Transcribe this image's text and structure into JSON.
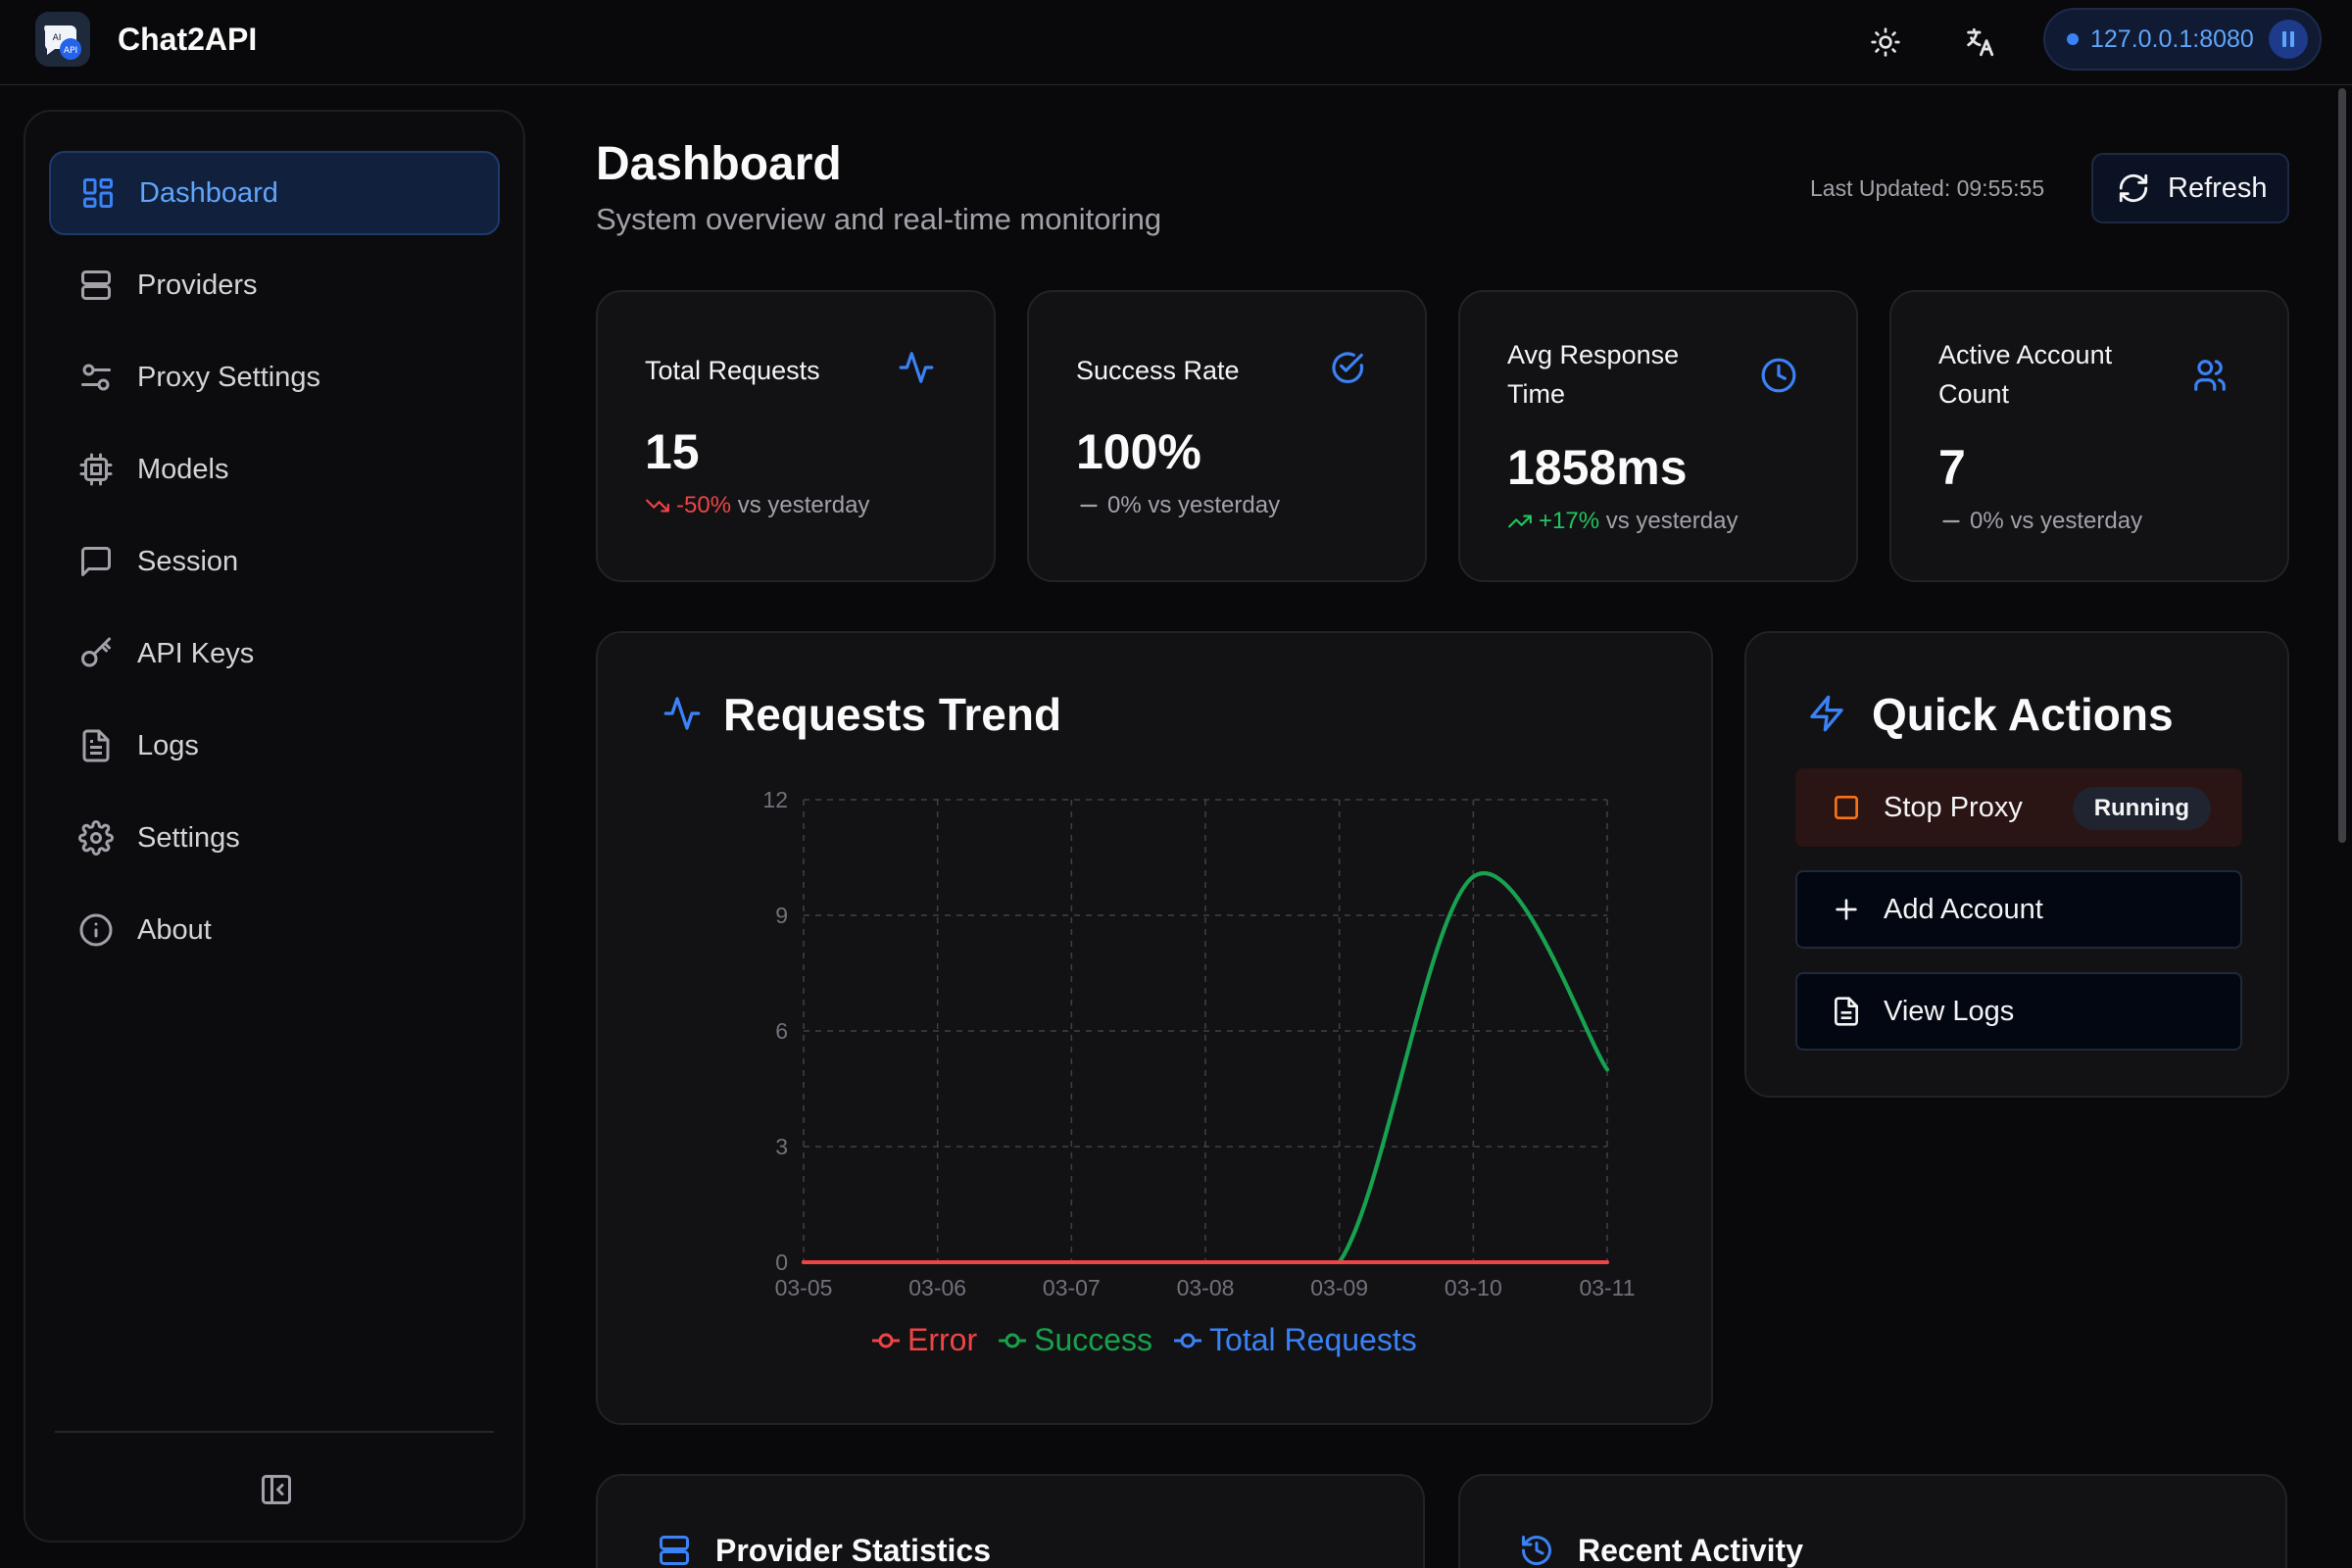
{
  "app": {
    "name": "Chat2API"
  },
  "topbar": {
    "server_address": "127.0.0.1:8080"
  },
  "sidebar": {
    "items": [
      {
        "label": "Dashboard",
        "icon": "dashboard-icon",
        "active": true
      },
      {
        "label": "Providers",
        "icon": "server-icon"
      },
      {
        "label": "Proxy Settings",
        "icon": "sliders-icon"
      },
      {
        "label": "Models",
        "icon": "cpu-icon"
      },
      {
        "label": "Session",
        "icon": "chat-bubble-icon"
      },
      {
        "label": "API Keys",
        "icon": "key-icon"
      },
      {
        "label": "Logs",
        "icon": "file-text-icon"
      },
      {
        "label": "Settings",
        "icon": "gear-icon"
      },
      {
        "label": "About",
        "icon": "info-icon"
      }
    ]
  },
  "header": {
    "title": "Dashboard",
    "subtitle": "System overview and real-time monitoring",
    "last_updated": "Last Updated: 09:55:55",
    "refresh_label": "Refresh"
  },
  "stats": [
    {
      "label": "Total Requests",
      "value": "15",
      "trend": "-50%",
      "trend_suffix": "vs yesterday",
      "direction": "down",
      "icon": "activity-icon"
    },
    {
      "label": "Success Rate",
      "value": "100%",
      "trend": "0%",
      "trend_suffix": "vs yesterday",
      "direction": "flat",
      "icon": "check-circle-icon"
    },
    {
      "label": "Avg Response Time",
      "value": "1858ms",
      "trend": "+17%",
      "trend_suffix": "vs yesterday",
      "direction": "up",
      "icon": "clock-icon"
    },
    {
      "label": "Active Account Count",
      "value": "7",
      "trend": "0%",
      "trend_suffix": "vs yesterday",
      "direction": "flat",
      "icon": "users-icon"
    }
  ],
  "chart_card": {
    "title": "Requests Trend"
  },
  "chart_data": {
    "type": "line",
    "categories": [
      "03-05",
      "03-06",
      "03-07",
      "03-08",
      "03-09",
      "03-10",
      "03-11"
    ],
    "series": [
      {
        "name": "Error",
        "color": "#ef4444",
        "values": [
          0,
          0,
          0,
          0,
          0,
          0,
          0
        ]
      },
      {
        "name": "Success",
        "color": "#16a34a",
        "values": [
          0,
          0,
          0,
          0,
          0,
          10,
          5
        ]
      },
      {
        "name": "Total Requests",
        "color": "#3b82f6",
        "values": [
          0,
          0,
          0,
          0,
          0,
          10,
          5
        ]
      }
    ],
    "ylim": [
      0,
      12
    ],
    "yticks": [
      0,
      3,
      6,
      9,
      12
    ],
    "grid": true,
    "legend": "bottom"
  },
  "quick_actions": {
    "title": "Quick Actions",
    "stop_label": "Stop Proxy",
    "status_badge": "Running",
    "add_label": "Add Account",
    "logs_label": "View Logs"
  },
  "provider_stats": {
    "title": "Provider Statistics"
  },
  "recent_activity": {
    "title": "Recent Activity"
  },
  "colors": {
    "accent": "#3b82f6",
    "success": "#22c55e",
    "error": "#ef4444",
    "background": "#09090b",
    "card": "#121215"
  }
}
